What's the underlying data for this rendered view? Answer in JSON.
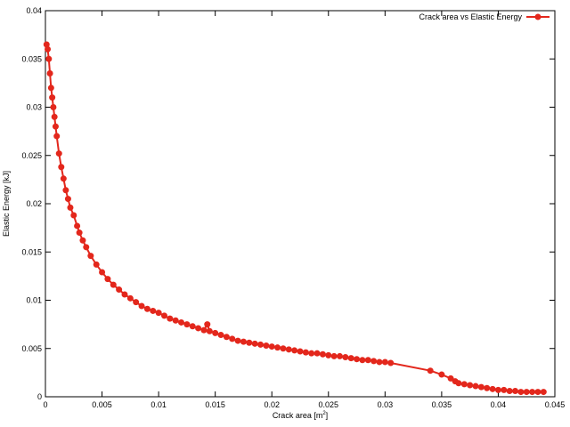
{
  "chart_data": {
    "type": "line",
    "title": "",
    "xlabel": "Crack area [m",
    "xlabel_sup": "2",
    "xlabel_end": "]",
    "ylabel": "Elastic Energy [kJ]",
    "xlim": [
      0,
      0.045
    ],
    "ylim": [
      0,
      0.04
    ],
    "x_ticks": [
      "0",
      "0.005",
      "0.01",
      "0.015",
      "0.02",
      "0.025",
      "0.03",
      "0.035",
      "0.04",
      "0.045"
    ],
    "y_ticks": [
      "0",
      "0.005",
      "0.01",
      "0.015",
      "0.02",
      "0.025",
      "0.03",
      "0.035",
      "0.04"
    ],
    "x_tick_values": [
      0,
      0.005,
      0.01,
      0.015,
      0.02,
      0.025,
      0.03,
      0.035,
      0.04,
      0.045
    ],
    "y_tick_values": [
      0,
      0.005,
      0.01,
      0.015,
      0.02,
      0.025,
      0.03,
      0.035,
      0.04
    ],
    "grid": false,
    "legend_position": "top-right",
    "series": [
      {
        "name": "Crack area vs Elastic Energy",
        "color": "#e3271c",
        "x": [
          0.0001,
          0.0002,
          0.0003,
          0.0004,
          0.0005,
          0.0006,
          0.0007,
          0.0008,
          0.0009,
          0.001,
          0.0012,
          0.0014,
          0.0016,
          0.0018,
          0.002,
          0.0022,
          0.0025,
          0.0028,
          0.003,
          0.0033,
          0.0036,
          0.004,
          0.0045,
          0.005,
          0.0055,
          0.006,
          0.0065,
          0.007,
          0.0075,
          0.008,
          0.0085,
          0.009,
          0.0095,
          0.01,
          0.0105,
          0.011,
          0.0115,
          0.012,
          0.0125,
          0.013,
          0.0135,
          0.014,
          0.0143,
          0.0145,
          0.015,
          0.0155,
          0.016,
          0.0165,
          0.017,
          0.0175,
          0.018,
          0.0185,
          0.019,
          0.0195,
          0.02,
          0.0205,
          0.021,
          0.0215,
          0.022,
          0.0225,
          0.023,
          0.0235,
          0.024,
          0.0245,
          0.025,
          0.0255,
          0.026,
          0.0265,
          0.027,
          0.0275,
          0.028,
          0.0285,
          0.029,
          0.0295,
          0.03,
          0.0305,
          0.034,
          0.035,
          0.0358,
          0.0362,
          0.0365,
          0.037,
          0.0375,
          0.038,
          0.0385,
          0.039,
          0.0395,
          0.04,
          0.0405,
          0.041,
          0.0415,
          0.042,
          0.0425,
          0.043,
          0.0435,
          0.044
        ],
        "y": [
          0.0365,
          0.036,
          0.035,
          0.0335,
          0.032,
          0.031,
          0.03,
          0.029,
          0.028,
          0.027,
          0.0252,
          0.0238,
          0.0226,
          0.0214,
          0.0205,
          0.0196,
          0.0188,
          0.0177,
          0.017,
          0.0162,
          0.0155,
          0.0146,
          0.0137,
          0.0129,
          0.0122,
          0.0116,
          0.0111,
          0.0106,
          0.0102,
          0.0098,
          0.0094,
          0.0091,
          0.0089,
          0.0087,
          0.0084,
          0.0081,
          0.0079,
          0.0077,
          0.0075,
          0.0073,
          0.0071,
          0.0069,
          0.0075,
          0.0068,
          0.0066,
          0.0064,
          0.0062,
          0.006,
          0.0058,
          0.0057,
          0.0056,
          0.0055,
          0.0054,
          0.0053,
          0.0052,
          0.0051,
          0.005,
          0.0049,
          0.0048,
          0.0047,
          0.0046,
          0.0045,
          0.0045,
          0.0044,
          0.0043,
          0.0042,
          0.0042,
          0.0041,
          0.004,
          0.0039,
          0.0038,
          0.0038,
          0.0037,
          0.0036,
          0.0036,
          0.0035,
          0.0027,
          0.0023,
          0.0019,
          0.0016,
          0.0014,
          0.0013,
          0.0012,
          0.0011,
          0.001,
          0.0009,
          0.0008,
          0.0007,
          0.0007,
          0.0006,
          0.0006,
          0.0005,
          0.0005,
          0.0005,
          0.0005,
          0.0005
        ]
      }
    ]
  }
}
